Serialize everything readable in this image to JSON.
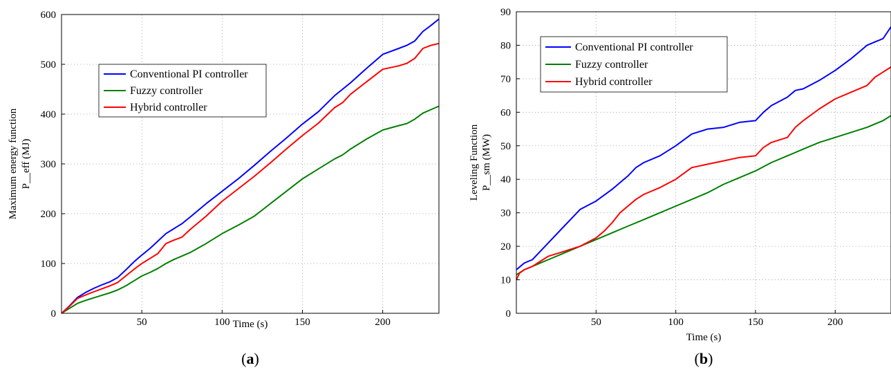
{
  "colors": {
    "pi": "#0000ff",
    "fuzzy": "#007f00",
    "hybrid": "#ff0000"
  },
  "chart_data": [
    {
      "type": "line",
      "caption_letter": "a",
      "xlabel": "Time (s)",
      "ylabel_line1": "Maximum energy function",
      "ylabel_line2": "P__eff (MJ)",
      "xlim": [
        0,
        235
      ],
      "ylim": [
        0,
        600
      ],
      "xticks": [
        50,
        100,
        150,
        200
      ],
      "yticks": [
        0,
        100,
        200,
        300,
        400,
        500,
        600
      ],
      "grid": true,
      "legend_position": "center-left",
      "series": [
        {
          "name": "Conventional PI controller",
          "color_key": "pi",
          "x": [
            0,
            5,
            10,
            15,
            20,
            25,
            30,
            35,
            40,
            45,
            50,
            55,
            60,
            65,
            70,
            75,
            80,
            90,
            100,
            110,
            120,
            130,
            140,
            150,
            160,
            170,
            175,
            180,
            190,
            200,
            210,
            215,
            220,
            225,
            230,
            235
          ],
          "y": [
            0,
            15,
            32,
            42,
            50,
            57,
            63,
            72,
            87,
            103,
            117,
            130,
            145,
            160,
            170,
            180,
            193,
            220,
            245,
            270,
            297,
            325,
            352,
            380,
            405,
            437,
            450,
            463,
            492,
            520,
            532,
            538,
            547,
            566,
            578,
            591
          ]
        },
        {
          "name": "Fuzzy controller",
          "color_key": "fuzzy",
          "x": [
            0,
            5,
            10,
            15,
            20,
            25,
            30,
            35,
            40,
            45,
            50,
            55,
            60,
            65,
            70,
            75,
            80,
            90,
            100,
            110,
            120,
            130,
            140,
            150,
            160,
            170,
            175,
            180,
            190,
            200,
            210,
            215,
            220,
            225,
            230,
            235
          ],
          "y": [
            0,
            10,
            20,
            26,
            31,
            36,
            41,
            47,
            55,
            65,
            75,
            82,
            90,
            100,
            108,
            115,
            122,
            140,
            160,
            177,
            195,
            220,
            245,
            270,
            290,
            310,
            318,
            330,
            350,
            368,
            377,
            381,
            390,
            402,
            409,
            416
          ]
        },
        {
          "name": "Hybrid controller",
          "color_key": "hybrid",
          "x": [
            0,
            5,
            10,
            15,
            20,
            25,
            30,
            35,
            40,
            45,
            50,
            55,
            60,
            65,
            70,
            75,
            80,
            90,
            100,
            110,
            120,
            130,
            140,
            150,
            160,
            170,
            175,
            180,
            190,
            200,
            210,
            215,
            220,
            225,
            230,
            235
          ],
          "y": [
            0,
            14,
            30,
            37,
            43,
            49,
            55,
            62,
            75,
            88,
            100,
            110,
            120,
            140,
            147,
            153,
            168,
            195,
            225,
            250,
            275,
            302,
            330,
            357,
            382,
            413,
            423,
            440,
            465,
            490,
            497,
            502,
            512,
            532,
            538,
            542
          ]
        }
      ]
    },
    {
      "type": "line",
      "caption_letter": "b",
      "xlabel": "Time (s)",
      "ylabel_line1": "Leveling Function",
      "ylabel_line2": "P__sm (MW)",
      "xlim": [
        0,
        235
      ],
      "ylim": [
        0,
        90
      ],
      "xticks": [
        50,
        100,
        150,
        200
      ],
      "yticks": [
        0,
        10,
        20,
        30,
        40,
        50,
        60,
        70,
        80,
        90
      ],
      "grid": true,
      "legend_position": "top-left",
      "series": [
        {
          "name": "Conventional PI controller",
          "color_key": "pi",
          "x": [
            0,
            5,
            10,
            15,
            20,
            30,
            40,
            50,
            60,
            70,
            75,
            80,
            90,
            100,
            110,
            120,
            130,
            140,
            150,
            155,
            160,
            170,
            175,
            180,
            190,
            200,
            210,
            215,
            220,
            225,
            230,
            235
          ],
          "y": [
            13,
            15,
            16,
            18.5,
            21,
            26,
            31,
            33.5,
            37,
            41,
            43.5,
            45,
            47,
            50,
            53.5,
            55,
            55.5,
            57,
            57.5,
            60,
            62,
            64.5,
            66.5,
            67,
            69.5,
            72.5,
            76,
            78,
            80,
            81,
            82,
            85.5
          ]
        },
        {
          "name": "Fuzzy controller",
          "color_key": "fuzzy",
          "x": [
            0,
            5,
            10,
            15,
            20,
            30,
            40,
            50,
            60,
            70,
            80,
            90,
            100,
            110,
            120,
            130,
            140,
            150,
            160,
            170,
            180,
            190,
            200,
            210,
            220,
            230,
            235
          ],
          "y": [
            11.5,
            13,
            14,
            15,
            16,
            18,
            20,
            22,
            24,
            26,
            28,
            30,
            32,
            34,
            36,
            38.5,
            40.5,
            42.5,
            45,
            47,
            49,
            51,
            52.5,
            54,
            55.5,
            57.5,
            59
          ]
        },
        {
          "name": "Hybrid controller",
          "color_key": "hybrid",
          "x": [
            0,
            2,
            5,
            10,
            15,
            20,
            30,
            40,
            50,
            55,
            60,
            65,
            70,
            75,
            80,
            90,
            100,
            110,
            120,
            130,
            140,
            150,
            155,
            160,
            170,
            175,
            180,
            190,
            200,
            210,
            215,
            220,
            225,
            230,
            235
          ],
          "y": [
            10,
            12,
            13,
            14,
            15.5,
            17,
            18.5,
            20,
            22.5,
            24.5,
            27,
            30,
            32,
            34,
            35.5,
            37.5,
            40,
            43.5,
            44.5,
            45.5,
            46.5,
            47,
            49.5,
            51,
            52.5,
            55.5,
            57.5,
            61,
            64,
            66,
            67,
            68,
            70.5,
            72,
            73.5
          ]
        }
      ]
    }
  ]
}
